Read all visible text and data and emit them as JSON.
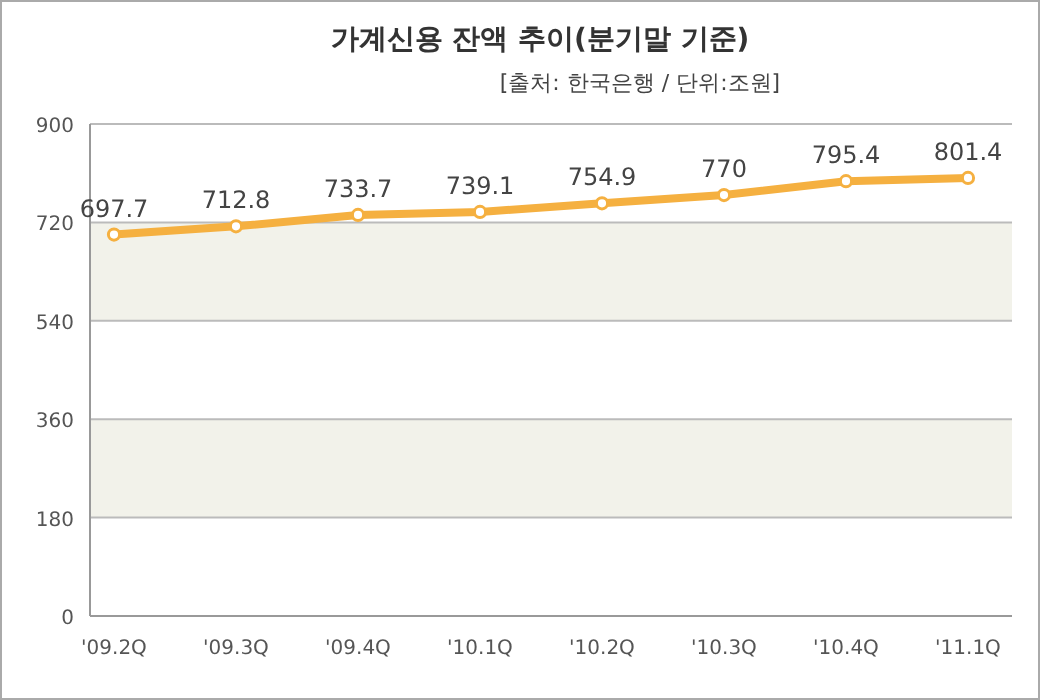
{
  "chart_data": {
    "type": "line",
    "title": "가계신용 잔액 추이(분기말 기준)",
    "subtitle": "[출처: 한국은행 / 단위:조원]",
    "categories": [
      "'09.2Q",
      "'09.3Q",
      "'09.4Q",
      "'10.1Q",
      "'10.2Q",
      "'10.3Q",
      "'10.4Q",
      "'11.1Q"
    ],
    "values": [
      697.7,
      712.8,
      733.7,
      739.1,
      754.9,
      770,
      795.4,
      801.4
    ],
    "color": "#f5b040",
    "marker": "circle",
    "data_labels": true,
    "grid": "y",
    "legend": false,
    "ylim": [
      0,
      900
    ],
    "yticks": [
      0,
      180,
      360,
      540,
      720,
      900
    ],
    "bands": [
      {
        "axis": "y",
        "from": 180,
        "to": 360,
        "color": "#f2f2ea"
      },
      {
        "axis": "y",
        "from": 540,
        "to": 720,
        "color": "#f2f2ea"
      }
    ]
  }
}
